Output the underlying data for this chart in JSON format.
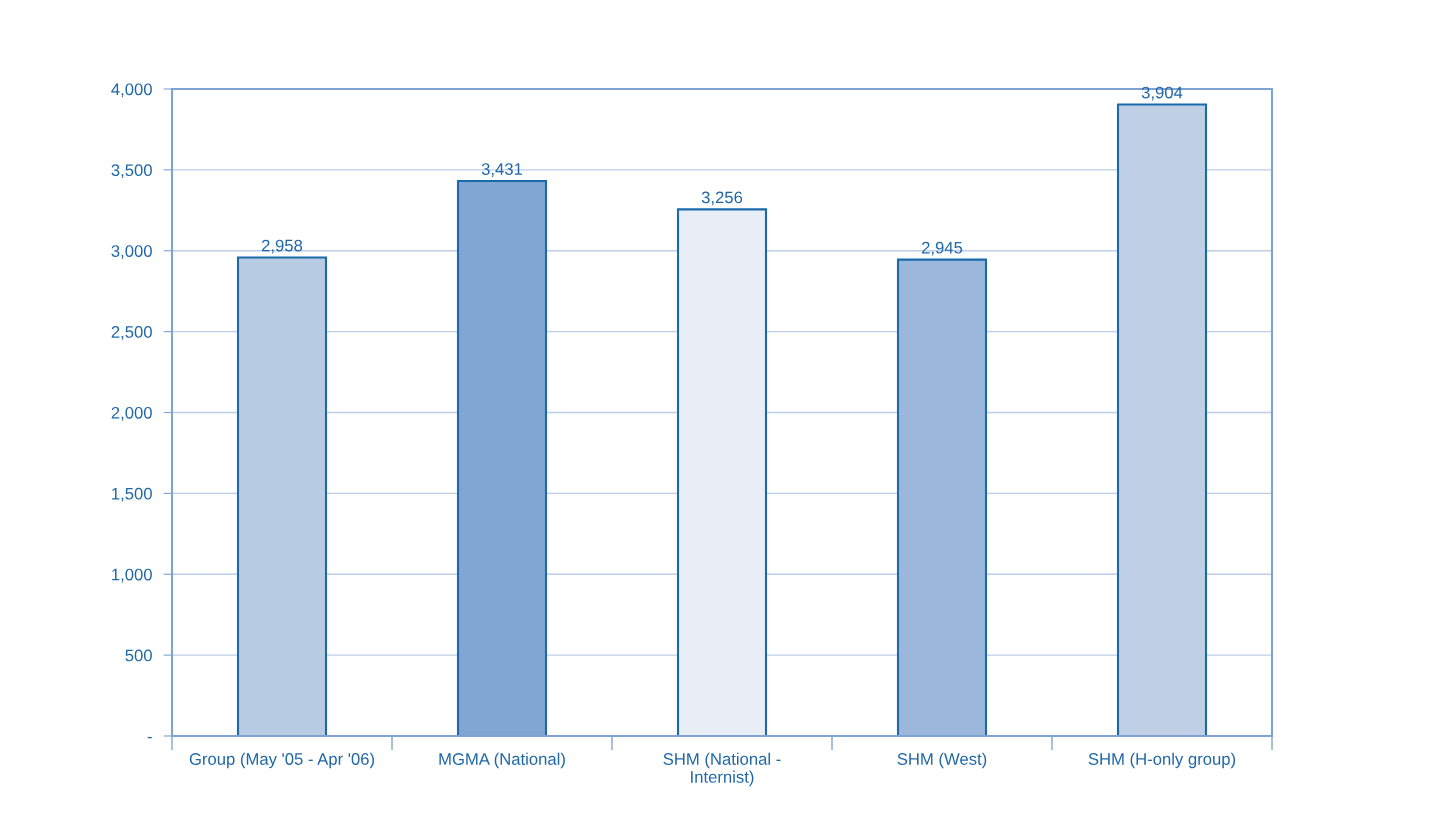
{
  "chart_data": {
    "type": "bar",
    "categories": [
      "Group (May '05 - Apr '06)",
      "MGMA (National)",
      "SHM (National -\nInternist)",
      "SHM (West)",
      "SHM (H-only group)"
    ],
    "values": [
      2958,
      3431,
      3256,
      2945,
      3904
    ],
    "colors": [
      "#b7cbe3",
      "#81a6d1",
      "#e8edf6",
      "#9bb7db",
      "#bfcfe5"
    ],
    "value_labels": [
      "2,958",
      "3,431",
      "3,256",
      "2,945",
      "3,904"
    ],
    "ylim": [
      0,
      4000
    ],
    "yticks": [
      {
        "value": 0,
        "label": "-"
      },
      500,
      {
        "value": 1000,
        "label": "1,000"
      },
      {
        "value": 1500,
        "label": "1,500"
      },
      {
        "value": 2000,
        "label": "2,000"
      },
      {
        "value": 2500,
        "label": "2,500"
      },
      {
        "value": 3000,
        "label": "3,000"
      },
      {
        "value": 3500,
        "label": "3,500"
      },
      {
        "value": 4000,
        "label": "4,000"
      }
    ],
    "grid": "y"
  }
}
